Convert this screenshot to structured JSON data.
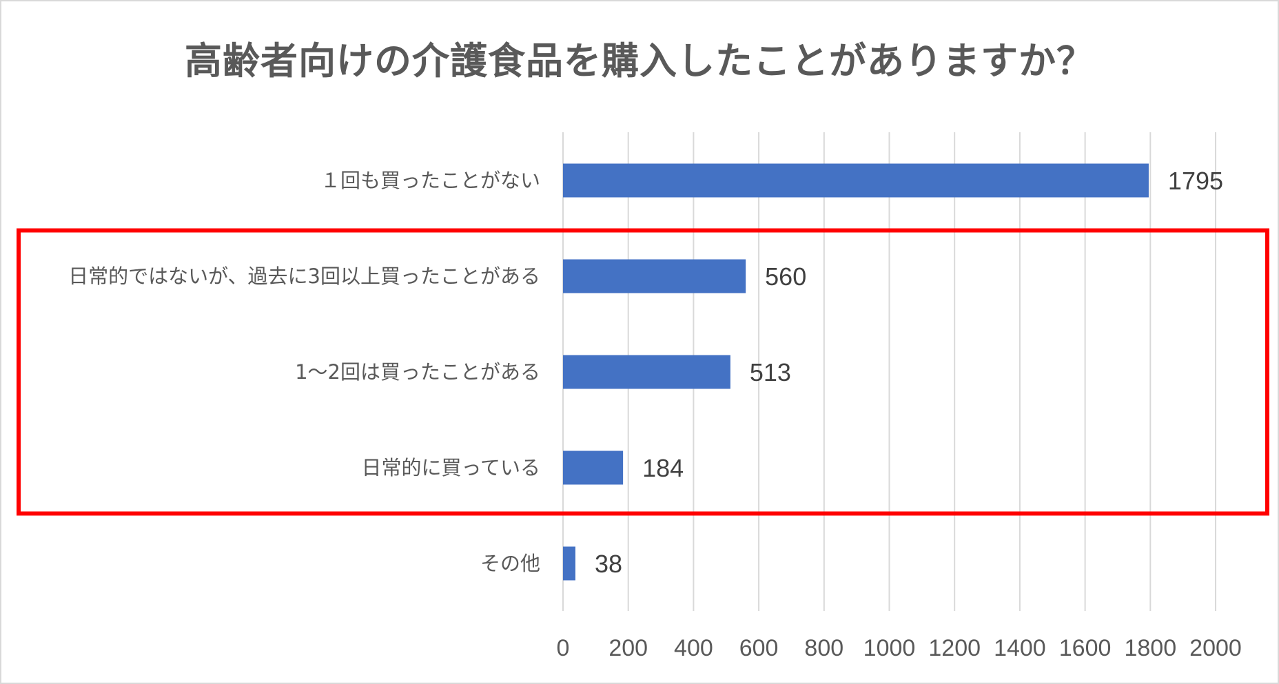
{
  "chart_data": {
    "type": "bar",
    "orientation": "horizontal",
    "title": "高齢者向けの介護食品を購入したことがありますか？",
    "categories": [
      "１回も買ったことがない",
      "日常的ではないが、過去に3回以上買ったことがある",
      "1〜2回は買ったことがある",
      "日常的に買っている",
      "その他"
    ],
    "values": [
      1795,
      560,
      513,
      184,
      38
    ],
    "data_labels": [
      "1795",
      "560",
      "513",
      "184",
      "38"
    ],
    "xlim": [
      0,
      2000
    ],
    "x_ticks": [
      0,
      200,
      400,
      600,
      800,
      1000,
      1200,
      1400,
      1600,
      1800,
      2000
    ],
    "grid": true,
    "legend": "none",
    "bar_color": "#4472c4",
    "highlight": {
      "categories": [
        "日常的ではないが、過去に3回以上買ったことがある",
        "1〜2回は買ったことがある",
        "日常的に買っている"
      ],
      "color": "#ff0000"
    }
  }
}
